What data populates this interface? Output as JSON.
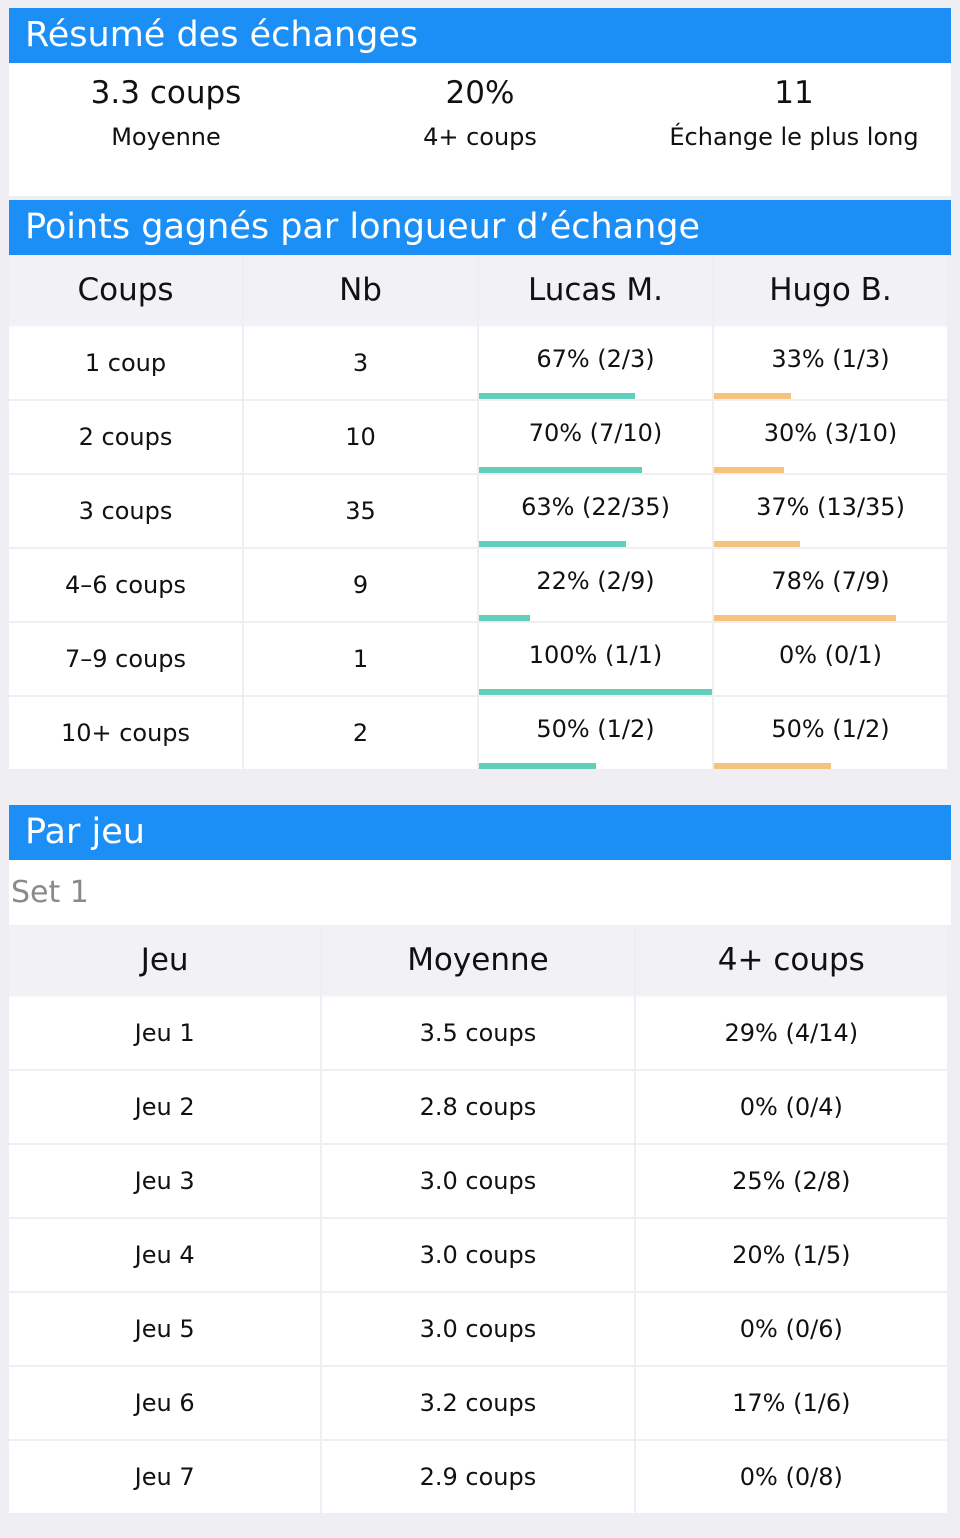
{
  "summary": {
    "header": "Résumé des échanges",
    "stats": [
      {
        "value": "3.3 coups",
        "label": "Moyenne"
      },
      {
        "value": "20%",
        "label": "4+ coups"
      },
      {
        "value": "11",
        "label": "Échange le plus long"
      }
    ]
  },
  "points": {
    "header": "Points gagnés par longueur d’échange",
    "columns": [
      "Coups",
      "Nb",
      "Lucas M.",
      "Hugo B."
    ],
    "colors": {
      "player1": "#63cfbb",
      "player2": "#f7c27e"
    },
    "rows": [
      {
        "coups": "1 coup",
        "nb": "3",
        "p1": "67% (2/3)",
        "p1_frac": 0.67,
        "p2": "33% (1/3)",
        "p2_frac": 0.33
      },
      {
        "coups": "2 coups",
        "nb": "10",
        "p1": "70% (7/10)",
        "p1_frac": 0.7,
        "p2": "30% (3/10)",
        "p2_frac": 0.3
      },
      {
        "coups": "3 coups",
        "nb": "35",
        "p1": "63% (22/35)",
        "p1_frac": 0.63,
        "p2": "37% (13/35)",
        "p2_frac": 0.37
      },
      {
        "coups": "4–6 coups",
        "nb": "9",
        "p1": "22% (2/9)",
        "p1_frac": 0.22,
        "p2": "78% (7/9)",
        "p2_frac": 0.78
      },
      {
        "coups": "7–9 coups",
        "nb": "1",
        "p1": "100% (1/1)",
        "p1_frac": 1.0,
        "p2": "0% (0/1)",
        "p2_frac": 0.0
      },
      {
        "coups": "10+ coups",
        "nb": "2",
        "p1": "50% (1/2)",
        "p1_frac": 0.5,
        "p2": "50% (1/2)",
        "p2_frac": 0.5
      }
    ]
  },
  "parjeu": {
    "header": "Par jeu",
    "set_label": "Set 1",
    "columns": [
      "Jeu",
      "Moyenne",
      "4+ coups"
    ],
    "rows": [
      {
        "jeu": "Jeu 1",
        "moyenne": "3.5 coups",
        "four_plus": "29% (4/14)"
      },
      {
        "jeu": "Jeu 2",
        "moyenne": "2.8 coups",
        "four_plus": "0% (0/4)"
      },
      {
        "jeu": "Jeu 3",
        "moyenne": "3.0 coups",
        "four_plus": "25% (2/8)"
      },
      {
        "jeu": "Jeu 4",
        "moyenne": "3.0 coups",
        "four_plus": "20% (1/5)"
      },
      {
        "jeu": "Jeu 5",
        "moyenne": "3.0 coups",
        "four_plus": "0% (0/6)"
      },
      {
        "jeu": "Jeu 6",
        "moyenne": "3.2 coups",
        "four_plus": "17% (1/6)"
      },
      {
        "jeu": "Jeu 7",
        "moyenne": "2.9 coups",
        "four_plus": "0% (0/8)"
      }
    ]
  }
}
